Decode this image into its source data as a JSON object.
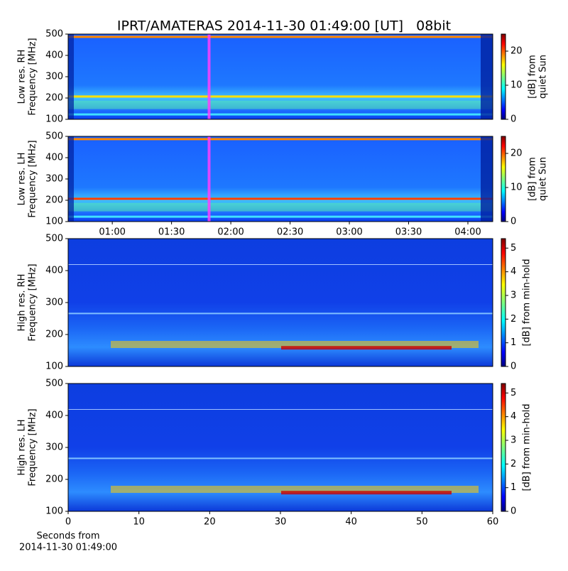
{
  "chart_data": [
    {
      "type": "spectrogram",
      "title": "IPRT/AMATERAS 2014-11-30 01:49:00 [UT]   08bit",
      "ylabel": [
        "Low res. RH",
        "Frequency [MHz]"
      ],
      "xlim": [
        "00:37:40",
        "04:12:35"
      ],
      "marker": "01:49",
      "ylim": [
        100,
        500
      ],
      "yticks": [
        100,
        200,
        300,
        400,
        500
      ],
      "clim": [
        0,
        25
      ],
      "cticks": [
        0,
        10,
        20
      ],
      "clabel": [
        "[dB] from",
        "quiet Sun"
      ]
    },
    {
      "type": "spectrogram",
      "ylabel": [
        "Low res. LH",
        "Frequency [MHz]"
      ],
      "xlim": [
        "00:37:40",
        "04:12:35"
      ],
      "marker": "01:49",
      "xticks": [
        "01:00",
        "01:30",
        "02:00",
        "02:30",
        "03:00",
        "03:30",
        "04:00"
      ],
      "ylim": [
        100,
        500
      ],
      "yticks": [
        100,
        200,
        300,
        400,
        500
      ],
      "clim": [
        0,
        25
      ],
      "cticks": [
        0,
        10,
        20
      ],
      "clabel": [
        "[dB] from",
        "quiet Sun"
      ]
    },
    {
      "type": "spectrogram",
      "ylabel": [
        "High res. RH",
        "Frequency [MHz]"
      ],
      "xlim": [
        0,
        60
      ],
      "ylim": [
        100,
        500
      ],
      "yticks": [
        100,
        200,
        300,
        400,
        500
      ],
      "clim": [
        0,
        5.4
      ],
      "cticks": [
        0,
        1,
        2,
        3,
        4,
        5
      ],
      "clabel": [
        "[dB] from min-hold"
      ]
    },
    {
      "type": "spectrogram",
      "ylabel": [
        "High res. LH",
        "Frequency [MHz]"
      ],
      "xlim": [
        0,
        60
      ],
      "xticks": [
        0,
        10,
        20,
        30,
        40,
        50,
        60
      ],
      "xlabel": [
        "Seconds from",
        "2014-11-30 01:49:00"
      ],
      "ylim": [
        100,
        500
      ],
      "yticks": [
        100,
        200,
        300,
        400,
        500
      ],
      "clim": [
        0,
        5.4
      ],
      "cticks": [
        0,
        1,
        2,
        3,
        4,
        5
      ],
      "clabel": [
        "[dB] from min-hold"
      ]
    }
  ]
}
